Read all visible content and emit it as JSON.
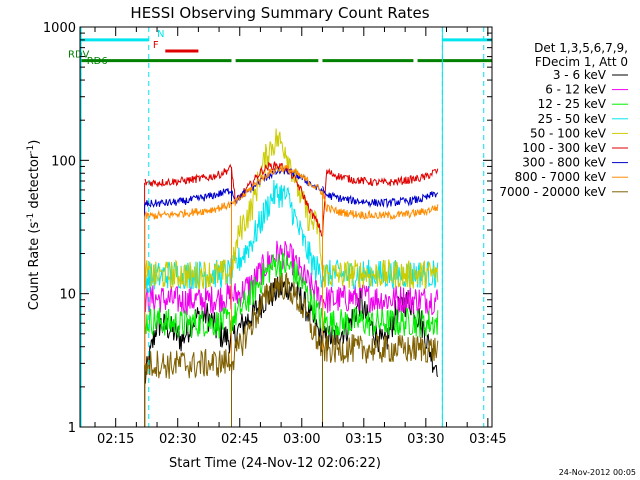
{
  "chart_data": {
    "type": "line",
    "title": "HESSI Observing Summary Count Rates",
    "xlabel": "Start Time (24-Nov-12 02:06:22)",
    "ylabel_main": "Count Rate (s",
    "ylabel_sup1": "-1",
    "ylabel_mid": " detector",
    "ylabel_sup2": "-1",
    "ylabel_end": ")",
    "footer": "24-Nov-2012 00:05",
    "yscale": "log",
    "xlim": [
      6.37,
      106
    ],
    "ylim": [
      1,
      1000
    ],
    "xticks": [
      {
        "v": 15,
        "label": "02:15"
      },
      {
        "v": 30,
        "label": "02:30"
      },
      {
        "v": 45,
        "label": "02:45"
      },
      {
        "v": 60,
        "label": "03:00"
      },
      {
        "v": 75,
        "label": "03:15"
      },
      {
        "v": 90,
        "label": "03:30"
      },
      {
        "v": 105,
        "label": "03:45"
      }
    ],
    "yticks": [
      {
        "v": 1,
        "label": "1"
      },
      {
        "v": 10,
        "label": "10"
      },
      {
        "v": 100,
        "label": "100"
      },
      {
        "v": 1000,
        "label": "1000"
      }
    ],
    "legend": {
      "header1": "Det 1,3,5,6,7,9,",
      "header2": "FDecim 1, Att 0",
      "placement": "right"
    },
    "night_lines": [
      23,
      94,
      104
    ],
    "flags": [
      {
        "label": "N",
        "color": "#00e5ee",
        "y": 800,
        "segments": [
          [
            6.5,
            23
          ],
          [
            94,
            106
          ]
        ],
        "label_x": 25
      },
      {
        "label": "F",
        "color": "#e00000",
        "y": 660,
        "segments": [
          [
            27,
            35
          ]
        ],
        "label_x": 24
      },
      {
        "label": "RDV",
        "color": "#008000",
        "y": 560,
        "segments": [
          [
            6.5,
            43
          ],
          [
            44,
            64
          ],
          [
            65,
            87
          ],
          [
            88,
            106
          ]
        ],
        "label_x": -1
      },
      {
        "label": "RD6",
        "color": "#008000",
        "y": 500,
        "segments": [],
        "label_x": 8
      }
    ],
    "orbit_windows": [
      [
        22,
        43
      ],
      [
        43,
        65
      ],
      [
        65,
        93
      ]
    ],
    "series": [
      {
        "name": "3 - 6 keV",
        "color": "#000000",
        "points": [
          [
            22,
            2.2
          ],
          [
            25,
            6.0
          ],
          [
            28,
            5.5
          ],
          [
            31,
            4.5
          ],
          [
            34,
            6.5
          ],
          [
            37,
            7.0
          ],
          [
            40,
            5.0
          ],
          [
            43,
            4.5
          ],
          [
            45,
            5.5
          ],
          [
            48,
            7.0
          ],
          [
            51,
            9.0
          ],
          [
            54,
            10.5
          ],
          [
            57,
            11.5
          ],
          [
            60,
            9.0
          ],
          [
            63,
            6.0
          ],
          [
            65,
            4.5
          ],
          [
            68,
            4.8
          ],
          [
            71,
            5.5
          ],
          [
            74,
            8.5
          ],
          [
            77,
            5.5
          ],
          [
            80,
            4.0
          ],
          [
            83,
            7.5
          ],
          [
            86,
            9.0
          ],
          [
            89,
            6.0
          ],
          [
            92,
            3.0
          ]
        ]
      },
      {
        "name": "6 - 12 keV",
        "color": "#ee00ee",
        "points": [
          [
            22,
            9.0
          ],
          [
            25,
            9.2
          ],
          [
            28,
            9.0
          ],
          [
            31,
            8.8
          ],
          [
            34,
            9.0
          ],
          [
            37,
            8.9
          ],
          [
            40,
            9.3
          ],
          [
            43,
            9.5
          ],
          [
            45,
            10.0
          ],
          [
            48,
            12.0
          ],
          [
            51,
            16.0
          ],
          [
            54,
            20.0
          ],
          [
            57,
            19.0
          ],
          [
            60,
            14.0
          ],
          [
            63,
            10.5
          ],
          [
            65,
            9.0
          ],
          [
            68,
            9.0
          ],
          [
            71,
            9.2
          ],
          [
            74,
            9.5
          ],
          [
            77,
            9.3
          ],
          [
            80,
            9.0
          ],
          [
            83,
            9.2
          ],
          [
            86,
            9.1
          ],
          [
            89,
            9.0
          ],
          [
            92,
            9.0
          ]
        ]
      },
      {
        "name": "12 - 25 keV",
        "color": "#00ee00",
        "points": [
          [
            22,
            6.2
          ],
          [
            25,
            6.3
          ],
          [
            28,
            6.0
          ],
          [
            31,
            5.9
          ],
          [
            34,
            6.0
          ],
          [
            37,
            6.1
          ],
          [
            40,
            6.0
          ],
          [
            43,
            6.3
          ],
          [
            45,
            7.5
          ],
          [
            48,
            10.0
          ],
          [
            51,
            14.0
          ],
          [
            54,
            17.0
          ],
          [
            57,
            16.0
          ],
          [
            60,
            12.0
          ],
          [
            63,
            8.0
          ],
          [
            65,
            6.2
          ],
          [
            68,
            6.0
          ],
          [
            71,
            6.1
          ],
          [
            74,
            6.2
          ],
          [
            77,
            6.0
          ],
          [
            80,
            6.1
          ],
          [
            83,
            6.0
          ],
          [
            86,
            6.2
          ],
          [
            89,
            6.0
          ],
          [
            92,
            6.1
          ]
        ]
      },
      {
        "name": "25 - 50 keV",
        "color": "#00e5ee",
        "points": [
          [
            22,
            13.0
          ],
          [
            25,
            13.5
          ],
          [
            28,
            14.0
          ],
          [
            31,
            14.0
          ],
          [
            34,
            13.8
          ],
          [
            37,
            14.2
          ],
          [
            40,
            14.0
          ],
          [
            43,
            14.5
          ],
          [
            45,
            18.0
          ],
          [
            48,
            25.0
          ],
          [
            51,
            40.0
          ],
          [
            53,
            55.0
          ],
          [
            55,
            57.0
          ],
          [
            57,
            50.0
          ],
          [
            59,
            32.0
          ],
          [
            61,
            22.0
          ],
          [
            63,
            16.0
          ],
          [
            65,
            14.0
          ],
          [
            68,
            14.0
          ],
          [
            71,
            13.8
          ],
          [
            74,
            14.2
          ],
          [
            77,
            14.0
          ],
          [
            80,
            13.9
          ],
          [
            83,
            14.0
          ],
          [
            86,
            14.1
          ],
          [
            89,
            14.0
          ],
          [
            92,
            14.0
          ]
        ]
      },
      {
        "name": "50 - 100 keV",
        "color": "#cccc00",
        "points": [
          [
            22,
            14.0
          ],
          [
            25,
            13.5
          ],
          [
            28,
            13.8
          ],
          [
            31,
            14.0
          ],
          [
            34,
            13.5
          ],
          [
            37,
            14.2
          ],
          [
            40,
            14.0
          ],
          [
            43,
            14.5
          ],
          [
            45,
            30.0
          ],
          [
            48,
            45.0
          ],
          [
            50,
            80.0
          ],
          [
            52,
            120.0
          ],
          [
            54,
            145.0
          ],
          [
            56,
            125.0
          ],
          [
            58,
            80.0
          ],
          [
            60,
            50.0
          ],
          [
            62,
            35.0
          ],
          [
            64,
            32.0
          ],
          [
            65,
            14.0
          ],
          [
            68,
            13.8
          ],
          [
            71,
            14.0
          ],
          [
            74,
            14.2
          ],
          [
            77,
            13.9
          ],
          [
            80,
            14.0
          ],
          [
            83,
            14.1
          ],
          [
            86,
            13.8
          ],
          [
            89,
            14.0
          ],
          [
            92,
            14.0
          ]
        ]
      },
      {
        "name": "100 - 300 keV",
        "color": "#e00000",
        "points": [
          [
            22,
            68.0
          ],
          [
            25,
            68.0
          ],
          [
            28,
            69.0
          ],
          [
            31,
            70.0
          ],
          [
            34,
            72.0
          ],
          [
            37,
            74.0
          ],
          [
            40,
            78.0
          ],
          [
            43,
            88.0
          ],
          [
            44,
            48.0
          ],
          [
            46,
            58.0
          ],
          [
            48,
            68.0
          ],
          [
            50,
            82.0
          ],
          [
            52,
            90.0
          ],
          [
            54,
            92.0
          ],
          [
            56,
            88.0
          ],
          [
            58,
            75.0
          ],
          [
            60,
            58.0
          ],
          [
            62,
            42.0
          ],
          [
            64,
            33.0
          ],
          [
            65,
            27.0
          ],
          [
            66,
            82.0
          ],
          [
            69,
            76.0
          ],
          [
            72,
            72.0
          ],
          [
            75,
            70.0
          ],
          [
            78,
            68.0
          ],
          [
            81,
            68.0
          ],
          [
            84,
            70.0
          ],
          [
            87,
            72.0
          ],
          [
            90,
            75.0
          ],
          [
            92,
            82.0
          ]
        ]
      },
      {
        "name": "300 - 800 keV",
        "color": "#0000cc",
        "points": [
          [
            22,
            47.0
          ],
          [
            25,
            47.5
          ],
          [
            28,
            48.0
          ],
          [
            31,
            49.0
          ],
          [
            34,
            51.0
          ],
          [
            37,
            53.0
          ],
          [
            40,
            56.0
          ],
          [
            43,
            60.0
          ],
          [
            44,
            50.0
          ],
          [
            46,
            56.0
          ],
          [
            48,
            62.0
          ],
          [
            50,
            70.0
          ],
          [
            52,
            77.0
          ],
          [
            54,
            82.0
          ],
          [
            56,
            84.0
          ],
          [
            58,
            80.0
          ],
          [
            60,
            74.0
          ],
          [
            62,
            67.0
          ],
          [
            64,
            61.0
          ],
          [
            65,
            60.0
          ],
          [
            66,
            55.0
          ],
          [
            69,
            52.0
          ],
          [
            72,
            50.0
          ],
          [
            75,
            49.0
          ],
          [
            78,
            48.0
          ],
          [
            81,
            48.0
          ],
          [
            84,
            49.0
          ],
          [
            87,
            50.0
          ],
          [
            90,
            52.0
          ],
          [
            92,
            56.0
          ]
        ]
      },
      {
        "name": "800 - 7000 keV",
        "color": "#ff8c00",
        "points": [
          [
            22,
            38.0
          ],
          [
            25,
            38.5
          ],
          [
            28,
            39.0
          ],
          [
            31,
            40.0
          ],
          [
            34,
            41.0
          ],
          [
            37,
            42.0
          ],
          [
            40,
            44.0
          ],
          [
            43,
            47.0
          ],
          [
            44,
            48.0
          ],
          [
            46,
            55.0
          ],
          [
            48,
            63.0
          ],
          [
            50,
            72.0
          ],
          [
            52,
            80.0
          ],
          [
            54,
            86.0
          ],
          [
            56,
            88.0
          ],
          [
            58,
            82.0
          ],
          [
            60,
            75.0
          ],
          [
            62,
            68.0
          ],
          [
            64,
            61.0
          ],
          [
            65,
            58.0
          ],
          [
            66,
            44.0
          ],
          [
            69,
            41.0
          ],
          [
            72,
            40.0
          ],
          [
            75,
            39.0
          ],
          [
            78,
            38.5
          ],
          [
            81,
            38.5
          ],
          [
            84,
            39.0
          ],
          [
            87,
            40.0
          ],
          [
            90,
            41.5
          ],
          [
            92,
            44.0
          ]
        ]
      },
      {
        "name": "7000 - 20000 keV",
        "color": "#806000",
        "points": [
          [
            22,
            2.9
          ],
          [
            25,
            3.0
          ],
          [
            28,
            2.9
          ],
          [
            31,
            3.0
          ],
          [
            34,
            2.9
          ],
          [
            37,
            3.0
          ],
          [
            40,
            3.0
          ],
          [
            43,
            3.1
          ],
          [
            45,
            4.0
          ],
          [
            48,
            6.0
          ],
          [
            51,
            9.0
          ],
          [
            54,
            12.0
          ],
          [
            57,
            11.0
          ],
          [
            60,
            8.0
          ],
          [
            63,
            5.0
          ],
          [
            65,
            3.8
          ],
          [
            68,
            3.8
          ],
          [
            71,
            3.9
          ],
          [
            74,
            3.8
          ],
          [
            77,
            3.9
          ],
          [
            80,
            3.8
          ],
          [
            83,
            3.9
          ],
          [
            86,
            3.8
          ],
          [
            89,
            3.9
          ],
          [
            92,
            3.8
          ]
        ]
      }
    ]
  }
}
